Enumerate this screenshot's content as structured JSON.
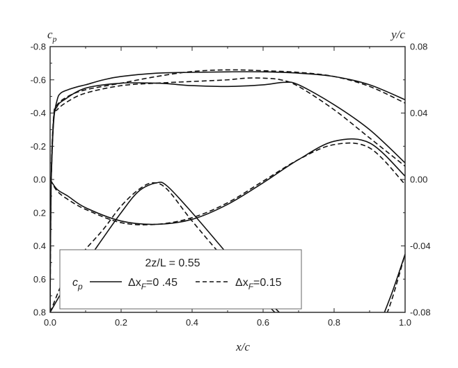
{
  "chart_data": {
    "type": "line",
    "x_axis": {
      "label": "x/c",
      "range": [
        0,
        1
      ],
      "ticks": [
        "0.0",
        "0.2",
        "0.4",
        "0.6",
        "0.8",
        "1.0"
      ],
      "tick_values": [
        0,
        0.2,
        0.4,
        0.6,
        0.8,
        1.0
      ]
    },
    "y_left_axis": {
      "label": "c_p",
      "label_main": "c",
      "label_sub": "p",
      "range": [
        0.8,
        -0.8
      ],
      "reversed": true,
      "ticks": [
        "-0.8",
        "-0.6",
        "-0.4",
        "-0.2",
        "0.0",
        "0.2",
        "0.4",
        "0.6",
        "0.8"
      ],
      "tick_values": [
        -0.8,
        -0.6,
        -0.4,
        -0.2,
        0,
        0.2,
        0.4,
        0.6,
        0.8
      ]
    },
    "y_right_axis": {
      "label": "y/c",
      "range": [
        -0.08,
        0.08
      ],
      "ticks": [
        "0.08",
        "0.04",
        "0.00",
        "-0.04",
        "-0.08"
      ],
      "tick_values": [
        0.08,
        0.04,
        0,
        -0.04,
        -0.08
      ]
    },
    "legend": {
      "title": "2z/L = 0.55",
      "label_cp_main": "c",
      "label_cp_sub": "p",
      "entry1_prefix": "Δx",
      "entry1_sub": "F",
      "entry1_suffix": "=0 .45",
      "entry2_prefix": "Δx",
      "entry2_sub": "F",
      "entry2_suffix": "=0.15",
      "placement": "bottom-left"
    },
    "series": [
      {
        "style": "solid",
        "axis": "cp",
        "part": "upper",
        "x": [
          0.0,
          0.003,
          0.01,
          0.02,
          0.03,
          0.05,
          0.08,
          0.1,
          0.15,
          0.2,
          0.3,
          0.4,
          0.5,
          0.6,
          0.7,
          0.8,
          0.9,
          1.0
        ],
        "y": [
          0.8,
          0.0,
          -0.35,
          -0.48,
          -0.52,
          -0.54,
          -0.56,
          -0.57,
          -0.6,
          -0.62,
          -0.64,
          -0.645,
          -0.648,
          -0.648,
          -0.64,
          -0.62,
          -0.57,
          -0.48
        ]
      },
      {
        "style": "solid",
        "axis": "cp",
        "part": "lower",
        "x": [
          0.003,
          0.01,
          0.02,
          0.04,
          0.1,
          0.2,
          0.3,
          0.34,
          0.4,
          0.5,
          0.6,
          0.66,
          0.7,
          0.8,
          0.9,
          1.0
        ],
        "y": [
          0.0,
          -0.36,
          -0.44,
          -0.48,
          -0.55,
          -0.58,
          -0.58,
          -0.575,
          -0.565,
          -0.56,
          -0.57,
          -0.585,
          -0.57,
          -0.45,
          -0.3,
          -0.1
        ]
      },
      {
        "style": "dashed",
        "axis": "cp",
        "part": "upper",
        "x": [
          0.0,
          0.003,
          0.01,
          0.02,
          0.05,
          0.1,
          0.2,
          0.3,
          0.4,
          0.5,
          0.6,
          0.7,
          0.8,
          0.9,
          1.0
        ],
        "y": [
          0.8,
          0.0,
          -0.38,
          -0.45,
          -0.5,
          -0.54,
          -0.58,
          -0.62,
          -0.65,
          -0.66,
          -0.655,
          -0.645,
          -0.62,
          -0.56,
          -0.46
        ]
      },
      {
        "style": "dashed",
        "axis": "cp",
        "part": "lower",
        "x": [
          0.003,
          0.01,
          0.02,
          0.05,
          0.1,
          0.2,
          0.3,
          0.4,
          0.5,
          0.55,
          0.6,
          0.65,
          0.7,
          0.8,
          0.9,
          1.0
        ],
        "y": [
          0.0,
          -0.37,
          -0.42,
          -0.47,
          -0.52,
          -0.565,
          -0.58,
          -0.59,
          -0.6,
          -0.61,
          -0.61,
          -0.6,
          -0.56,
          -0.42,
          -0.25,
          -0.08
        ]
      },
      {
        "style": "solid",
        "axis": "y/c",
        "part": "upper",
        "x": [
          0.0,
          0.02,
          0.05,
          0.1,
          0.2,
          0.3,
          0.4,
          0.5,
          0.6,
          0.7,
          0.8,
          0.9,
          1.0
        ],
        "y": [
          0.0,
          -0.006,
          -0.01,
          -0.017,
          -0.025,
          -0.027,
          -0.024,
          -0.015,
          -0.002,
          0.012,
          0.023,
          0.022,
          0.002
        ]
      },
      {
        "style": "solid",
        "axis": "y/c",
        "part": "lower",
        "x": [
          0.0,
          0.05,
          0.1,
          0.15,
          0.2,
          0.25,
          0.3,
          0.33,
          0.4,
          0.5,
          0.6,
          0.7,
          0.8,
          0.85,
          0.88,
          0.92,
          0.96,
          1.0
        ],
        "y": [
          -0.08,
          -0.062,
          -0.05,
          -0.035,
          -0.02,
          -0.007,
          -0.002,
          -0.004,
          -0.02,
          -0.045,
          -0.07,
          -0.09,
          -0.1,
          -0.102,
          -0.1,
          -0.09,
          -0.07,
          -0.045
        ]
      },
      {
        "style": "dashed",
        "axis": "y/c",
        "part": "upper",
        "x": [
          0.0,
          0.02,
          0.05,
          0.1,
          0.2,
          0.3,
          0.4,
          0.5,
          0.6,
          0.7,
          0.8,
          0.9,
          1.0
        ],
        "y": [
          0.0,
          -0.007,
          -0.012,
          -0.018,
          -0.026,
          -0.027,
          -0.023,
          -0.014,
          -0.001,
          0.012,
          0.021,
          0.019,
          -0.003
        ]
      },
      {
        "style": "dashed",
        "axis": "y/c",
        "part": "lower",
        "x": [
          0.0,
          0.05,
          0.1,
          0.15,
          0.2,
          0.25,
          0.29,
          0.33,
          0.4,
          0.5,
          0.6,
          0.7,
          0.8,
          0.86,
          0.9,
          0.95,
          1.0
        ],
        "y": [
          -0.08,
          -0.055,
          -0.042,
          -0.03,
          -0.016,
          -0.006,
          -0.002,
          -0.006,
          -0.025,
          -0.05,
          -0.073,
          -0.092,
          -0.1,
          -0.102,
          -0.098,
          -0.08,
          -0.045
        ]
      }
    ]
  }
}
